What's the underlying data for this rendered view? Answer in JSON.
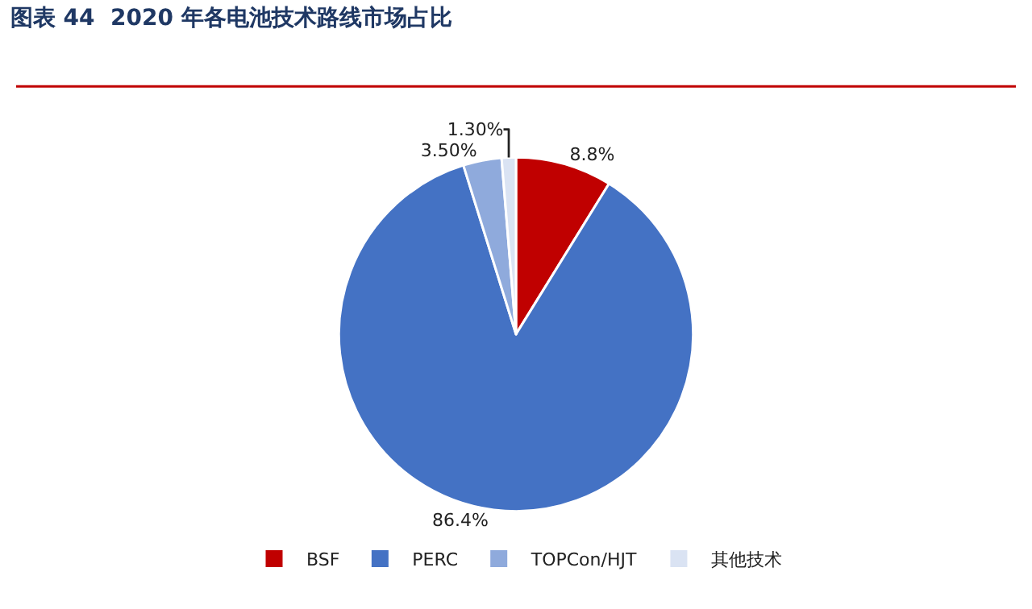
{
  "chart_data": {
    "type": "pie",
    "title": "图表 44  2020 年各电池技术路线市场占比",
    "categories": [
      "BSF",
      "PERC",
      "TOPCon/HJT",
      "其他技术"
    ],
    "values": [
      8.8,
      86.4,
      3.5,
      1.3
    ],
    "value_labels": [
      "8.8%",
      "86.4%",
      "3.50%",
      "1.30%"
    ],
    "colors": [
      "#c00000",
      "#4472c4",
      "#8faadc",
      "#dae3f3"
    ],
    "legend": "bottom"
  }
}
